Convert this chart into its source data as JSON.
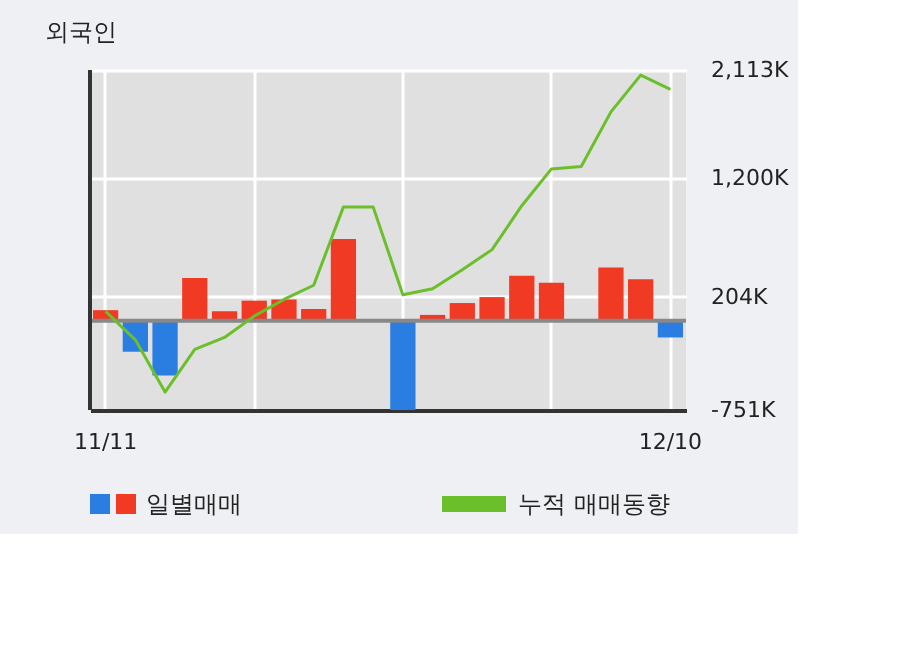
{
  "chart_data": {
    "type": "bar",
    "title": "외국인",
    "categories": [
      "11/11",
      null,
      null,
      null,
      null,
      null,
      null,
      null,
      null,
      null,
      null,
      null,
      null,
      null,
      null,
      null,
      null,
      null,
      null,
      "12/10"
    ],
    "series": [
      {
        "name": "일별매매",
        "values": [
          90,
          -260,
          -460,
          360,
          80,
          170,
          180,
          100,
          690,
          0,
          -750,
          50,
          150,
          200,
          380,
          320,
          0,
          450,
          350,
          -140
        ],
        "colors": [
          "#f03a24",
          "#2a7de1",
          "#2a7de1",
          "#f03a24",
          "#f03a24",
          "#f03a24",
          "#f03a24",
          "#f03a24",
          "#f03a24",
          "#f03a24",
          "#2a7de1",
          "#f03a24",
          "#f03a24",
          "#f03a24",
          "#f03a24",
          "#f03a24",
          "#f03a24",
          "#f03a24",
          "#f03a24",
          "#2a7de1"
        ]
      },
      {
        "name": "누적 매매동향",
        "type": "line",
        "color": "#6abf2a",
        "values": [
          80,
          -160,
          -600,
          -240,
          -140,
          40,
          180,
          300,
          960,
          960,
          220,
          270,
          430,
          600,
          970,
          1280,
          1300,
          1760,
          2070,
          1950
        ]
      }
    ],
    "ylim": [
      -751,
      2113
    ],
    "yticks": [
      {
        "value": -751,
        "label": "-751K"
      },
      {
        "value": 204,
        "label": "204K"
      },
      {
        "value": 1200,
        "label": "1,200K"
      },
      {
        "value": 2113,
        "label": "2,113K"
      }
    ],
    "grid": true,
    "legend": "bottom"
  }
}
